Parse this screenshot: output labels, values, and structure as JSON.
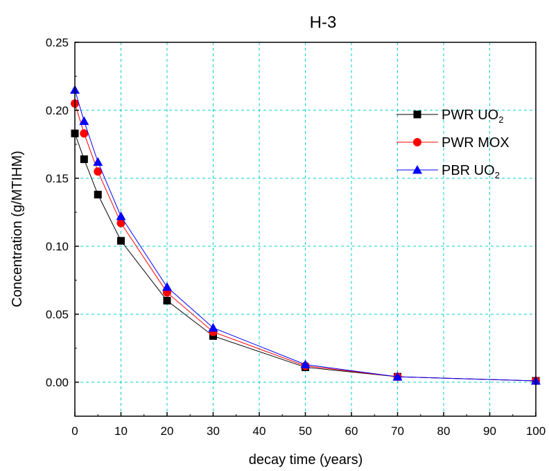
{
  "chart_data": {
    "type": "line",
    "title": "H-3",
    "xlabel": "decay time (years)",
    "ylabel": "Concentration (g/MTIHM)",
    "xlim": [
      0,
      100
    ],
    "ylim": [
      -0.025,
      0.25
    ],
    "xticks": [
      "0",
      "10",
      "20",
      "30",
      "40",
      "50",
      "60",
      "70",
      "80",
      "90",
      "100"
    ],
    "yticks": [
      "0.00",
      "0.05",
      "0.10",
      "0.15",
      "0.20",
      "0.25"
    ],
    "grid": true,
    "legend_position": "top-right",
    "x": [
      0,
      2,
      5,
      10,
      20,
      30,
      50,
      70,
      100
    ],
    "series": [
      {
        "name": "PWR UO",
        "name_sub": "2",
        "marker": "square",
        "color": "#000000",
        "values": [
          0.183,
          0.164,
          0.138,
          0.104,
          0.06,
          0.034,
          0.011,
          0.004,
          0.001
        ]
      },
      {
        "name": "PWR MOX",
        "name_sub": "",
        "marker": "circle",
        "color": "#ff0000",
        "values": [
          0.205,
          0.183,
          0.155,
          0.117,
          0.066,
          0.037,
          0.012,
          0.004,
          0.001
        ]
      },
      {
        "name": "PBR  UO",
        "name_sub": "2",
        "marker": "triangle",
        "color": "#0000ff",
        "values": [
          0.215,
          0.192,
          0.162,
          0.122,
          0.07,
          0.04,
          0.013,
          0.004,
          0.001
        ]
      }
    ]
  }
}
